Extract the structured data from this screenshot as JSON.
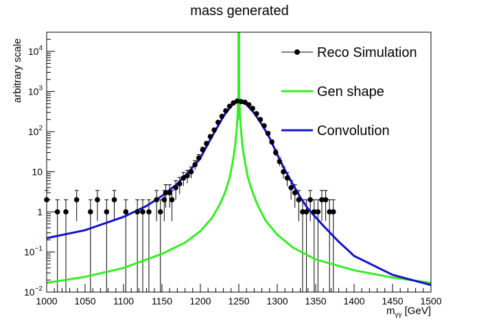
{
  "chart_data": {
    "type": "line",
    "title": "mass generated",
    "xlabel_main": "m",
    "xlabel_sub": "γγ",
    "xlabel_unit": " [GeV]",
    "ylabel": "arbitrary scale",
    "xlim": [
      1000,
      1500
    ],
    "ylim": [
      0.01,
      30000
    ],
    "yscale": "log",
    "x_ticks": [
      "1000",
      "1050",
      "1100",
      "1150",
      "1200",
      "1250",
      "1300",
      "1350",
      "1400",
      "1450",
      "1500"
    ],
    "y_ticks": [
      {
        "value": 0.01,
        "base": "10",
        "exp": "−2"
      },
      {
        "value": 0.1,
        "base": "10",
        "exp": "−1"
      },
      {
        "value": 1,
        "base": "1",
        "exp": ""
      },
      {
        "value": 10,
        "base": "10",
        "exp": ""
      },
      {
        "value": 100,
        "base": "10",
        "exp": "2"
      },
      {
        "value": 1000,
        "base": "10",
        "exp": "3"
      },
      {
        "value": 10000,
        "base": "10",
        "exp": "4"
      }
    ],
    "legend_position": "top-right",
    "series": [
      {
        "name": "Reco Simulation",
        "style": "markers-errorbars",
        "color": "#000000",
        "x": [
          1000,
          1014,
          1025,
          1039,
          1057,
          1066,
          1078,
          1088,
          1103,
          1118,
          1125,
          1133,
          1143,
          1148,
          1153,
          1155,
          1160,
          1163,
          1168,
          1173,
          1178,
          1183,
          1188,
          1193,
          1198,
          1203,
          1208,
          1213,
          1218,
          1223,
          1228,
          1233,
          1238,
          1243,
          1248,
          1253,
          1258,
          1263,
          1268,
          1273,
          1278,
          1283,
          1288,
          1293,
          1298,
          1303,
          1308,
          1313,
          1318,
          1323,
          1328,
          1333,
          1338,
          1343,
          1348,
          1353,
          1358,
          1363,
          1368,
          1373
        ],
        "y": [
          2,
          1,
          1,
          2,
          1,
          2,
          1,
          2,
          1,
          1,
          1,
          1,
          2,
          1,
          2,
          3,
          3,
          2,
          4,
          5,
          7,
          8,
          10,
          15,
          22,
          35,
          50,
          75,
          110,
          170,
          240,
          330,
          430,
          520,
          580,
          560,
          540,
          470,
          380,
          280,
          200,
          140,
          90,
          55,
          30,
          18,
          10,
          7,
          4,
          3,
          2,
          1,
          1,
          2,
          1,
          1,
          2,
          2,
          1,
          1
        ]
      },
      {
        "name": "Gen shape",
        "style": "line",
        "color": "#33ee22",
        "peak_x": 1250,
        "peak_y": 30000,
        "x": [
          1000,
          1050,
          1100,
          1150,
          1180,
          1200,
          1215,
          1225,
          1232,
          1238,
          1242,
          1245,
          1247,
          1248.5,
          1249.5,
          1250,
          1250.5,
          1251.5,
          1253,
          1255,
          1258,
          1262,
          1268,
          1275,
          1285,
          1300,
          1320,
          1350,
          1400,
          1450,
          1500
        ],
        "y": [
          0.017,
          0.024,
          0.04,
          0.09,
          0.17,
          0.33,
          0.7,
          1.5,
          3.0,
          7.0,
          17,
          40,
          100,
          250,
          900,
          30000,
          900,
          250,
          100,
          40,
          17,
          7.0,
          3.0,
          1.4,
          0.6,
          0.27,
          0.13,
          0.065,
          0.035,
          0.023,
          0.017
        ]
      },
      {
        "name": "Convolution",
        "style": "line",
        "color": "#1111cc",
        "x": [
          1000,
          1050,
          1100,
          1130,
          1150,
          1170,
          1185,
          1200,
          1210,
          1220,
          1230,
          1240,
          1245,
          1250,
          1255,
          1260,
          1270,
          1280,
          1290,
          1300,
          1310,
          1320,
          1330,
          1340,
          1360,
          1380,
          1400,
          1450,
          1500
        ],
        "y": [
          0.22,
          0.35,
          0.75,
          1.4,
          2.5,
          5,
          10,
          22,
          50,
          110,
          240,
          430,
          520,
          560,
          540,
          470,
          290,
          150,
          70,
          27,
          11,
          5,
          2.3,
          1.2,
          0.45,
          0.18,
          0.08,
          0.027,
          0.015
        ]
      }
    ]
  }
}
